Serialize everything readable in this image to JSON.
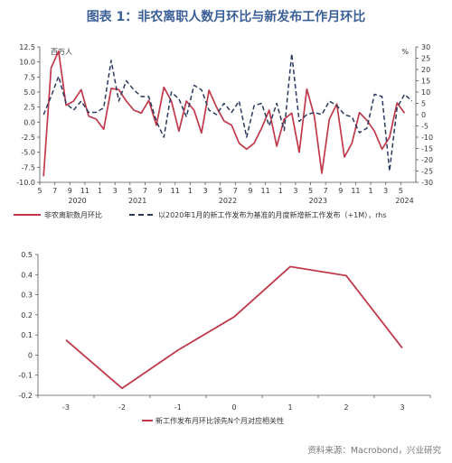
{
  "title": "图表 1：非农离职人数月环比与新发布工作月环比",
  "source": "资料来源：Macrobond，兴业研究",
  "colors": {
    "title": "#3b5f99",
    "series_red": "#c0394b",
    "series_navy": "#2a3a5e",
    "axis": "#555555"
  },
  "chart_data": [
    {
      "type": "line",
      "left_unit": "百万人",
      "right_unit": "%",
      "left_ylim": [
        -10,
        12.5
      ],
      "left_ticks": [
        "12.5",
        "10.0",
        "7.5",
        "5.0",
        "2.5",
        "0.0",
        "-2.5",
        "-5.0",
        "-7.5",
        "-10.0"
      ],
      "right_ylim": [
        -30,
        30
      ],
      "right_ticks": [
        "30",
        "25",
        "20",
        "15",
        "10",
        "5",
        "0",
        "-5",
        "-10",
        "-15",
        "-20",
        "-25",
        "-30"
      ],
      "x_month_labels": [
        "5",
        "7",
        "9",
        "11",
        "1",
        "3",
        "5",
        "7",
        "9",
        "11",
        "1",
        "3",
        "5",
        "7",
        "9",
        "11",
        "1",
        "3",
        "5",
        "7",
        "9",
        "11",
        "1",
        "3",
        "5"
      ],
      "x_year_labels": [
        {
          "label": "2020",
          "month_index": 5
        },
        {
          "label": "2021",
          "month_index": 13
        },
        {
          "label": "2022",
          "month_index": 25
        },
        {
          "label": "2023",
          "month_index": 37
        },
        {
          "label": "2024",
          "month_index": 48.5
        }
      ],
      "x_start": "2020-05",
      "series": [
        {
          "name": "非农离职数月环比",
          "axis": "left",
          "style": "solid",
          "values": [
            -9.0,
            9.0,
            11.8,
            2.8,
            3.5,
            5.4,
            1.0,
            0.5,
            -1.2,
            5.6,
            5.4,
            3.5,
            2.0,
            1.5,
            3.6,
            -0.5,
            5.8,
            3.5,
            -1.5,
            3.5,
            2.0,
            -1.8,
            5.3,
            2.5,
            0.2,
            -0.5,
            -3.5,
            -4.5,
            -3.5,
            -1.0,
            2.0,
            -4.0,
            0.5,
            1.5,
            -5.0,
            5.5,
            1.0,
            -8.5,
            0.5,
            3.0,
            -5.8,
            -3.5,
            1.6,
            0.3,
            -1.5,
            -4.5,
            -2.5,
            3.2,
            1.5
          ]
        },
        {
          "name": "以2020年1月的新工作发布为基准的月度新增新工作发布（+1M），rhs",
          "axis": "right",
          "style": "dashed",
          "values": [
            0,
            8,
            17,
            5,
            2,
            6,
            1,
            1,
            3,
            24,
            6,
            15,
            11,
            8,
            8,
            -3,
            -10,
            10,
            7,
            -1,
            13,
            11,
            2,
            0,
            5,
            1,
            6,
            -10,
            4,
            5,
            -5,
            5,
            -7,
            27,
            -3,
            0,
            1,
            0,
            6,
            4,
            0,
            -1,
            -8,
            -6,
            9,
            8,
            -25,
            3,
            9,
            6
          ]
        }
      ]
    },
    {
      "type": "line",
      "ylim": [
        -0.2,
        0.5
      ],
      "y_ticks": [
        "0.5",
        "0.4",
        "0.3",
        "0.2",
        "0.1",
        "0",
        "-0.1",
        "-0.2"
      ],
      "x": [
        "-3",
        "-2",
        "-1",
        "0",
        "1",
        "2",
        "3"
      ],
      "series": [
        {
          "name": "新工作发布月环比领先N个月对应相关性",
          "values": [
            0.075,
            -0.165,
            0.025,
            0.19,
            0.44,
            0.395,
            0.035
          ]
        }
      ]
    }
  ]
}
